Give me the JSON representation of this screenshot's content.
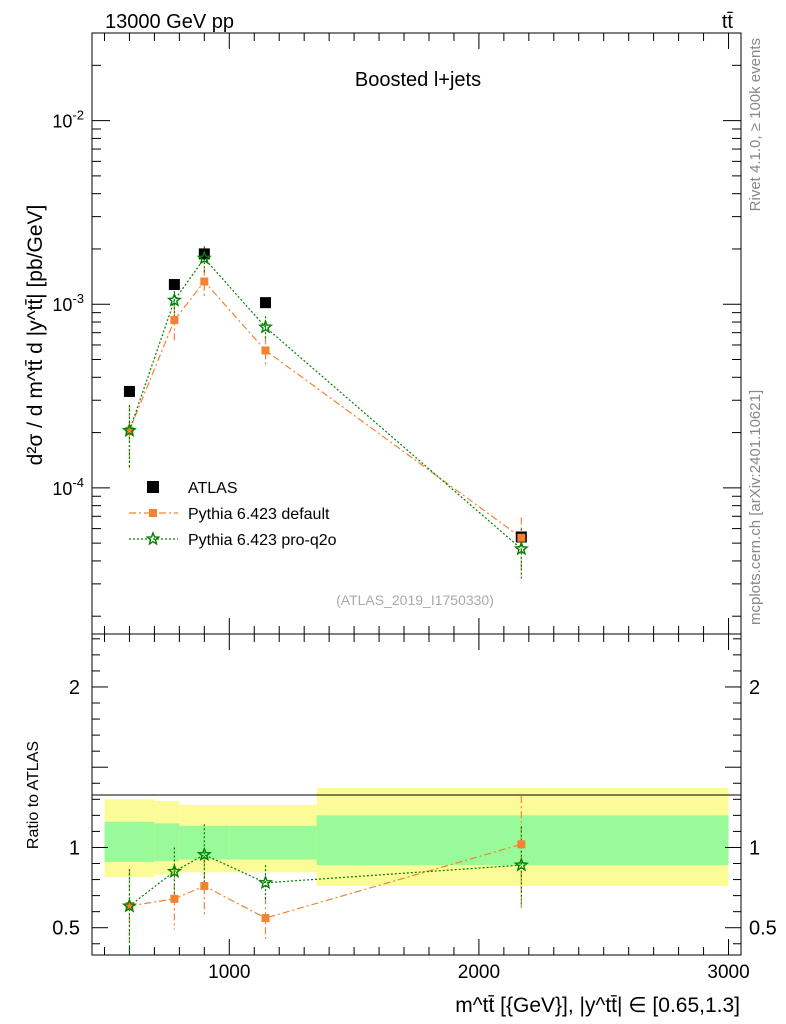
{
  "header": {
    "energy_label": "13000 GeV pp",
    "process_label": "tt̄"
  },
  "side": {
    "rivet_label": "Rivet 4.1.0, ≥ 100k events",
    "mcplots_label": "mcplots.cern.ch [arXiv:2401.10621]"
  },
  "colors": {
    "atlas": "#000000",
    "pythia_default": "#f58231",
    "pythia_proq2o": "#008000",
    "band_inner": "#98fa98",
    "band_outer": "#fbfb98"
  },
  "chart_data": {
    "type": "scatter",
    "title": "Boosted l+jets",
    "analysis_id": "(ATLAS_2019_I1750330)",
    "ylabel": "d²σ / d m^tt̄ d |y^tt̄| [pb/GeV]",
    "ratio_ylabel": "Ratio to ATLAS",
    "xlabel": "m^tt̄ [{GeV}], |y^tt̄| ∈ [0.65,1.3]",
    "xlim": [
      450,
      3050
    ],
    "ylim": [
      1.6e-05,
      0.03
    ],
    "yscale": "log",
    "ratio_ylim": [
      0.33,
      2.33
    ],
    "x_ticks": [
      1000,
      2000,
      3000
    ],
    "x_tick_labels": [
      "1000",
      "2000",
      "3000"
    ],
    "y_ticks": [
      0.0001,
      0.001,
      0.01
    ],
    "y_tick_labels": [
      "10^-4",
      "10^-3",
      "10^-2"
    ],
    "ratio_ticks": [
      0.5,
      1,
      2
    ],
    "ratio_tick_labels": [
      "0.5",
      "1",
      "2"
    ],
    "bin_edges": [
      500,
      700,
      800,
      1000,
      1350,
      3000
    ],
    "series": [
      {
        "name": "ATLAS",
        "marker": "square",
        "x": [
          600,
          780,
          900,
          1145,
          2170
        ],
        "values": [
          0.000335,
          0.00128,
          0.00188,
          0.00102,
          5.4e-05
        ]
      },
      {
        "name": "Pythia 6.423 default",
        "marker": "square-small",
        "line": "dashdot",
        "x": [
          600,
          780,
          900,
          1145,
          2170
        ],
        "values": [
          0.000205,
          0.00082,
          0.00133,
          0.00056,
          5.35e-05
        ],
        "err_low": [
          7.75e-05,
          0.00019,
          0.00023,
          0.0001,
          1.95e-05
        ],
        "err_high": [
          7.75e-05,
          0.00019,
          0.00023,
          0.0001,
          1.55e-05
        ],
        "ratio": [
          0.635,
          0.68,
          0.76,
          0.56,
          1.02
        ],
        "ratio_err_low": [
          0.23,
          0.19,
          0.18,
          0.13,
          0.4
        ],
        "ratio_err_high": [
          0.23,
          0.19,
          0.18,
          0.13,
          0.3
        ]
      },
      {
        "name": "Pythia 6.423 pro-q2o",
        "marker": "star",
        "line": "dotted",
        "x": [
          600,
          780,
          900,
          1145,
          2170
        ],
        "values": [
          0.000205,
          0.00105,
          0.00178,
          0.00075,
          4.65e-05
        ],
        "err_low": [
          7.75e-05,
          0.00019,
          0.00029,
          0.00011,
          1.45e-05
        ],
        "err_high": [
          7.75e-05,
          0.00019,
          0.00029,
          0.00011,
          1.35e-05
        ],
        "ratio": [
          0.635,
          0.85,
          0.955,
          0.78,
          0.89
        ],
        "ratio_err_low": [
          0.3,
          0.15,
          0.19,
          0.11,
          0.24
        ],
        "ratio_err_high": [
          0.23,
          0.15,
          0.19,
          0.11,
          0.24
        ]
      }
    ],
    "ratio_band_inner": [
      [
        0.91,
        1.16
      ],
      [
        0.915,
        1.15
      ],
      [
        0.925,
        1.135
      ],
      [
        0.925,
        1.135
      ],
      [
        0.89,
        1.2
      ]
    ],
    "ratio_band_outer": [
      [
        0.815,
        1.3
      ],
      [
        0.83,
        1.29
      ],
      [
        0.845,
        1.265
      ],
      [
        0.845,
        1.265
      ],
      [
        0.76,
        1.37
      ]
    ],
    "legend_location": "lower-left"
  }
}
